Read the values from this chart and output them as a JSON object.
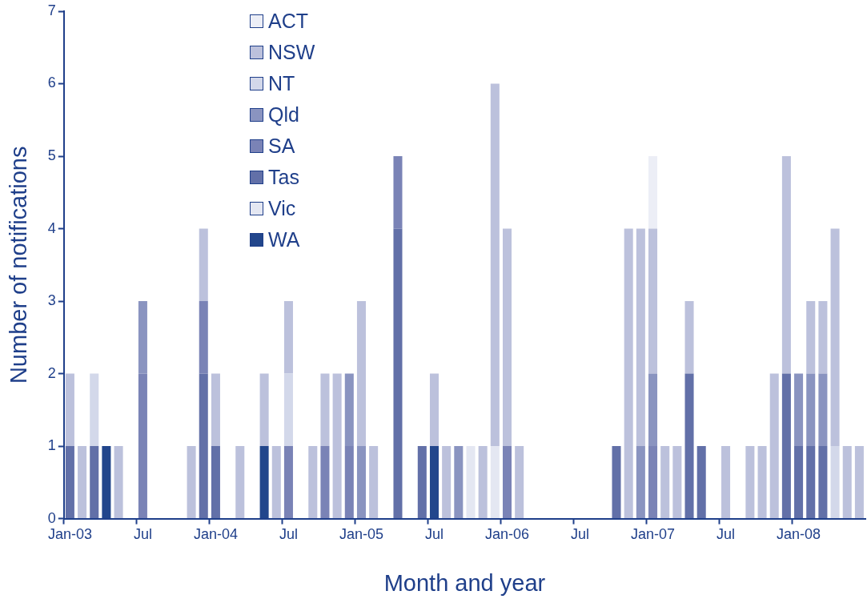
{
  "chart_data": {
    "type": "bar",
    "stacked": true,
    "xlabel": "Month and year",
    "ylabel": "Number of notifications",
    "categories": [
      "Jan-03",
      null,
      null,
      null,
      null,
      null,
      "Jul",
      null,
      null,
      null,
      null,
      null,
      "Jan-04",
      null,
      null,
      null,
      null,
      null,
      "Jul",
      null,
      null,
      null,
      null,
      null,
      "Jan-05",
      null,
      null,
      null,
      null,
      null,
      "Jul",
      null,
      null,
      null,
      null,
      null,
      "Jan-06",
      null,
      null,
      null,
      null,
      null,
      "Jul",
      null,
      null,
      null,
      null,
      null,
      "Jan-07",
      null,
      null,
      null,
      null,
      null,
      "Jul",
      null,
      null,
      null,
      null,
      null,
      "Jan-08",
      null,
      null,
      null,
      null,
      null
    ],
    "ylim": [
      0,
      7
    ],
    "yticks": [
      0,
      1,
      2,
      3,
      4,
      5,
      6,
      7
    ],
    "grid": false,
    "legend": "top left",
    "series": [
      {
        "name": "WA",
        "color": "#22468c",
        "values": [
          null,
          null,
          null,
          1,
          null,
          null,
          null,
          null,
          null,
          null,
          null,
          null,
          null,
          null,
          null,
          null,
          1,
          null,
          null,
          null,
          null,
          null,
          null,
          null,
          null,
          null,
          null,
          null,
          null,
          null,
          1,
          null,
          null,
          null,
          null,
          null,
          null,
          null,
          null,
          null,
          null,
          null,
          null,
          null,
          null,
          null,
          null,
          null,
          null,
          null,
          null,
          null,
          null,
          null,
          null,
          null,
          null,
          null,
          null,
          null,
          null,
          null,
          null,
          null,
          null,
          null
        ]
      },
      {
        "name": "Vic",
        "color": "#e4e7f2",
        "values": [
          null,
          null,
          null,
          null,
          null,
          null,
          null,
          null,
          null,
          null,
          null,
          null,
          null,
          null,
          null,
          null,
          null,
          null,
          null,
          null,
          null,
          null,
          null,
          null,
          null,
          null,
          null,
          null,
          null,
          null,
          null,
          null,
          null,
          1,
          null,
          1,
          null,
          null,
          null,
          null,
          null,
          null,
          null,
          null,
          null,
          null,
          null,
          null,
          null,
          null,
          null,
          null,
          null,
          null,
          null,
          null,
          null,
          null,
          null,
          null,
          null,
          null,
          null,
          null,
          null,
          null
        ]
      },
      {
        "name": "Tas",
        "color": "#6270a8",
        "values": [
          1,
          null,
          1,
          null,
          null,
          null,
          null,
          null,
          null,
          null,
          null,
          2,
          1,
          null,
          null,
          null,
          null,
          null,
          null,
          null,
          null,
          null,
          null,
          null,
          null,
          null,
          null,
          4,
          null,
          1,
          null,
          null,
          null,
          null,
          null,
          null,
          null,
          null,
          null,
          null,
          null,
          null,
          null,
          null,
          null,
          1,
          null,
          null,
          null,
          null,
          null,
          2,
          1,
          null,
          null,
          null,
          null,
          null,
          null,
          2,
          1,
          1,
          1,
          null,
          null,
          null
        ]
      },
      {
        "name": "SA",
        "color": "#7a83b6",
        "values": [
          null,
          null,
          null,
          null,
          null,
          null,
          2,
          null,
          null,
          null,
          null,
          1,
          null,
          null,
          null,
          null,
          null,
          null,
          1,
          null,
          null,
          1,
          null,
          1,
          null,
          null,
          null,
          1,
          null,
          null,
          null,
          null,
          null,
          null,
          null,
          null,
          1,
          null,
          null,
          null,
          null,
          null,
          null,
          null,
          null,
          null,
          null,
          null,
          1,
          null,
          null,
          null,
          null,
          null,
          null,
          null,
          null,
          null,
          null,
          null,
          null,
          null,
          null,
          null,
          null,
          null
        ]
      },
      {
        "name": "Qld",
        "color": "#8a94c0",
        "values": [
          null,
          null,
          null,
          null,
          null,
          null,
          1,
          null,
          null,
          null,
          null,
          null,
          null,
          null,
          null,
          null,
          null,
          null,
          null,
          null,
          null,
          null,
          null,
          1,
          1,
          null,
          null,
          null,
          null,
          null,
          null,
          null,
          1,
          null,
          null,
          null,
          null,
          null,
          null,
          null,
          null,
          null,
          null,
          null,
          null,
          null,
          null,
          1,
          1,
          null,
          null,
          null,
          null,
          null,
          null,
          null,
          null,
          null,
          null,
          null,
          1,
          1,
          1,
          null,
          null,
          null
        ]
      },
      {
        "name": "NT",
        "color": "#d3d8ea",
        "values": [
          null,
          null,
          1,
          null,
          null,
          null,
          null,
          null,
          null,
          null,
          null,
          null,
          null,
          null,
          null,
          null,
          null,
          null,
          1,
          null,
          null,
          null,
          null,
          null,
          null,
          null,
          null,
          null,
          null,
          null,
          null,
          null,
          null,
          null,
          null,
          null,
          null,
          null,
          null,
          null,
          null,
          null,
          null,
          null,
          null,
          null,
          null,
          null,
          null,
          null,
          null,
          null,
          null,
          null,
          null,
          null,
          null,
          null,
          null,
          null,
          null,
          null,
          null,
          1,
          null,
          null
        ]
      },
      {
        "name": "NSW",
        "color": "#bcc1dc",
        "values": [
          1,
          1,
          null,
          null,
          1,
          null,
          null,
          null,
          null,
          null,
          1,
          1,
          1,
          null,
          1,
          null,
          1,
          1,
          1,
          null,
          1,
          1,
          2,
          null,
          2,
          1,
          null,
          null,
          null,
          null,
          1,
          1,
          null,
          null,
          1,
          5,
          3,
          1,
          null,
          null,
          null,
          null,
          null,
          null,
          null,
          null,
          4,
          3,
          2,
          1,
          1,
          1,
          null,
          null,
          1,
          null,
          1,
          1,
          2,
          3,
          null,
          1,
          1,
          3,
          1,
          1
        ]
      },
      {
        "name": "ACT",
        "color": "#eceef6",
        "values": [
          null,
          null,
          null,
          null,
          null,
          null,
          null,
          null,
          null,
          null,
          null,
          null,
          null,
          null,
          null,
          null,
          null,
          null,
          null,
          null,
          null,
          null,
          null,
          null,
          null,
          null,
          null,
          null,
          null,
          null,
          null,
          null,
          null,
          null,
          null,
          null,
          null,
          null,
          null,
          null,
          null,
          null,
          null,
          null,
          null,
          null,
          null,
          null,
          1,
          null,
          null,
          null,
          null,
          null,
          null,
          null,
          null,
          null,
          null,
          null,
          null,
          null,
          null,
          null,
          null,
          null
        ]
      }
    ]
  }
}
